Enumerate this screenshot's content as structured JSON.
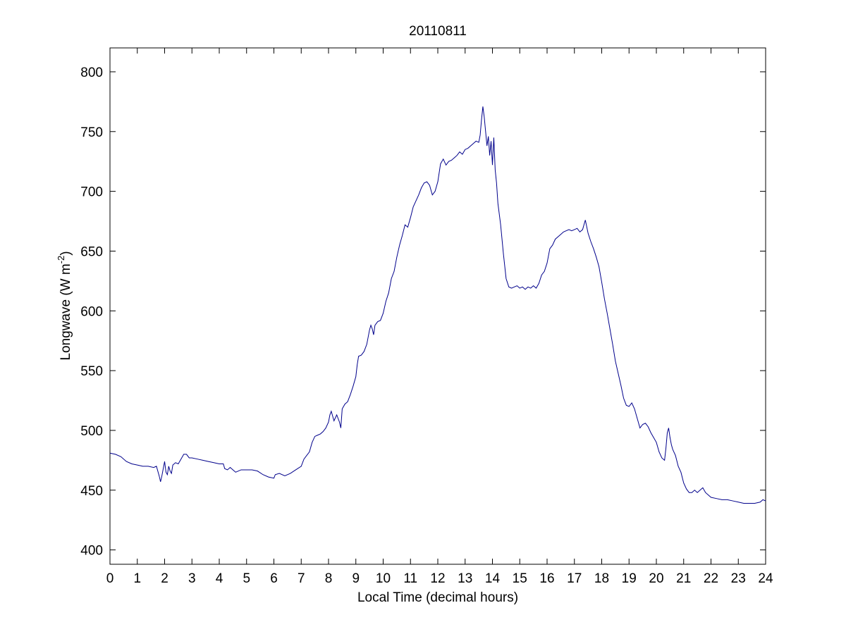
{
  "chart_data": {
    "type": "line",
    "title": "20110811",
    "xlabel": "Local Time (decimal hours)",
    "ylabel_main": "Longwave (W m",
    "ylabel_sup": "-2",
    "ylabel_close": ")",
    "xlim": [
      0,
      24
    ],
    "ylim": [
      388,
      820
    ],
    "xticks": [
      0,
      1,
      2,
      3,
      4,
      5,
      6,
      7,
      8,
      9,
      10,
      11,
      12,
      13,
      14,
      15,
      16,
      17,
      18,
      19,
      20,
      21,
      22,
      23,
      24
    ],
    "yticks": [
      400,
      450,
      500,
      550,
      600,
      650,
      700,
      750,
      800
    ],
    "grid": false,
    "line_color": "#00008b",
    "series": [
      {
        "points": [
          [
            0.0,
            481
          ],
          [
            0.2,
            480
          ],
          [
            0.4,
            478
          ],
          [
            0.6,
            474
          ],
          [
            0.8,
            472
          ],
          [
            1.0,
            471
          ],
          [
            1.2,
            470
          ],
          [
            1.4,
            470
          ],
          [
            1.6,
            469
          ],
          [
            1.7,
            470
          ],
          [
            1.8,
            462
          ],
          [
            1.85,
            457
          ],
          [
            1.9,
            462
          ],
          [
            1.95,
            468
          ],
          [
            2.0,
            474
          ],
          [
            2.05,
            465
          ],
          [
            2.1,
            463
          ],
          [
            2.15,
            470
          ],
          [
            2.2,
            466
          ],
          [
            2.25,
            464
          ],
          [
            2.3,
            471
          ],
          [
            2.4,
            473
          ],
          [
            2.5,
            472
          ],
          [
            2.6,
            476
          ],
          [
            2.7,
            480
          ],
          [
            2.8,
            480
          ],
          [
            2.9,
            477
          ],
          [
            3.0,
            477
          ],
          [
            3.2,
            476
          ],
          [
            3.4,
            475
          ],
          [
            3.6,
            474
          ],
          [
            3.8,
            473
          ],
          [
            4.0,
            472
          ],
          [
            4.15,
            472
          ],
          [
            4.2,
            468
          ],
          [
            4.3,
            467
          ],
          [
            4.4,
            469
          ],
          [
            4.5,
            467
          ],
          [
            4.6,
            465
          ],
          [
            4.8,
            467
          ],
          [
            5.0,
            467
          ],
          [
            5.2,
            467
          ],
          [
            5.4,
            466
          ],
          [
            5.6,
            463
          ],
          [
            5.8,
            461
          ],
          [
            6.0,
            460
          ],
          [
            6.05,
            463
          ],
          [
            6.2,
            464
          ],
          [
            6.4,
            462
          ],
          [
            6.6,
            464
          ],
          [
            6.8,
            467
          ],
          [
            7.0,
            470
          ],
          [
            7.1,
            476
          ],
          [
            7.2,
            479
          ],
          [
            7.3,
            482
          ],
          [
            7.4,
            490
          ],
          [
            7.5,
            495
          ],
          [
            7.6,
            496
          ],
          [
            7.7,
            497
          ],
          [
            7.8,
            499
          ],
          [
            7.9,
            502
          ],
          [
            8.0,
            507
          ],
          [
            8.05,
            513
          ],
          [
            8.1,
            516
          ],
          [
            8.15,
            512
          ],
          [
            8.2,
            508
          ],
          [
            8.3,
            513
          ],
          [
            8.4,
            507
          ],
          [
            8.45,
            502
          ],
          [
            8.5,
            518
          ],
          [
            8.6,
            522
          ],
          [
            8.7,
            524
          ],
          [
            8.8,
            530
          ],
          [
            8.9,
            537
          ],
          [
            9.0,
            545
          ],
          [
            9.05,
            555
          ],
          [
            9.1,
            562
          ],
          [
            9.2,
            563
          ],
          [
            9.3,
            566
          ],
          [
            9.4,
            572
          ],
          [
            9.5,
            584
          ],
          [
            9.55,
            588
          ],
          [
            9.6,
            585
          ],
          [
            9.65,
            580
          ],
          [
            9.7,
            588
          ],
          [
            9.8,
            591
          ],
          [
            9.9,
            592
          ],
          [
            10.0,
            598
          ],
          [
            10.1,
            608
          ],
          [
            10.2,
            615
          ],
          [
            10.3,
            627
          ],
          [
            10.4,
            633
          ],
          [
            10.5,
            645
          ],
          [
            10.6,
            655
          ],
          [
            10.7,
            663
          ],
          [
            10.8,
            672
          ],
          [
            10.9,
            670
          ],
          [
            11.0,
            678
          ],
          [
            11.1,
            687
          ],
          [
            11.2,
            692
          ],
          [
            11.3,
            697
          ],
          [
            11.4,
            703
          ],
          [
            11.5,
            707
          ],
          [
            11.6,
            708
          ],
          [
            11.7,
            705
          ],
          [
            11.8,
            697
          ],
          [
            11.9,
            700
          ],
          [
            12.0,
            708
          ],
          [
            12.1,
            723
          ],
          [
            12.2,
            727
          ],
          [
            12.3,
            722
          ],
          [
            12.4,
            725
          ],
          [
            12.5,
            726
          ],
          [
            12.6,
            728
          ],
          [
            12.7,
            730
          ],
          [
            12.8,
            733
          ],
          [
            12.9,
            731
          ],
          [
            13.0,
            735
          ],
          [
            13.1,
            736
          ],
          [
            13.2,
            738
          ],
          [
            13.3,
            740
          ],
          [
            13.4,
            742
          ],
          [
            13.5,
            741
          ],
          [
            13.55,
            747
          ],
          [
            13.6,
            760
          ],
          [
            13.65,
            771
          ],
          [
            13.7,
            762
          ],
          [
            13.75,
            750
          ],
          [
            13.8,
            738
          ],
          [
            13.85,
            746
          ],
          [
            13.9,
            730
          ],
          [
            13.95,
            742
          ],
          [
            14.0,
            722
          ],
          [
            14.05,
            745
          ],
          [
            14.1,
            718
          ],
          [
            14.15,
            707
          ],
          [
            14.2,
            690
          ],
          [
            14.3,
            672
          ],
          [
            14.4,
            648
          ],
          [
            14.5,
            627
          ],
          [
            14.6,
            620
          ],
          [
            14.7,
            619
          ],
          [
            14.8,
            620
          ],
          [
            14.9,
            621
          ],
          [
            15.0,
            619
          ],
          [
            15.1,
            620
          ],
          [
            15.2,
            618
          ],
          [
            15.3,
            620
          ],
          [
            15.4,
            619
          ],
          [
            15.5,
            621
          ],
          [
            15.6,
            619
          ],
          [
            15.7,
            623
          ],
          [
            15.8,
            630
          ],
          [
            15.9,
            633
          ],
          [
            16.0,
            640
          ],
          [
            16.1,
            652
          ],
          [
            16.2,
            655
          ],
          [
            16.3,
            660
          ],
          [
            16.4,
            662
          ],
          [
            16.5,
            664
          ],
          [
            16.6,
            666
          ],
          [
            16.7,
            667
          ],
          [
            16.8,
            668
          ],
          [
            16.9,
            667
          ],
          [
            17.0,
            668
          ],
          [
            17.1,
            669
          ],
          [
            17.2,
            666
          ],
          [
            17.3,
            668
          ],
          [
            17.35,
            672
          ],
          [
            17.4,
            676
          ],
          [
            17.5,
            665
          ],
          [
            17.6,
            658
          ],
          [
            17.7,
            652
          ],
          [
            17.8,
            645
          ],
          [
            17.9,
            637
          ],
          [
            18.0,
            624
          ],
          [
            18.1,
            610
          ],
          [
            18.2,
            598
          ],
          [
            18.3,
            585
          ],
          [
            18.4,
            572
          ],
          [
            18.5,
            558
          ],
          [
            18.6,
            548
          ],
          [
            18.7,
            538
          ],
          [
            18.8,
            527
          ],
          [
            18.9,
            521
          ],
          [
            19.0,
            520
          ],
          [
            19.1,
            523
          ],
          [
            19.2,
            518
          ],
          [
            19.3,
            510
          ],
          [
            19.4,
            502
          ],
          [
            19.5,
            505
          ],
          [
            19.6,
            506
          ],
          [
            19.7,
            503
          ],
          [
            19.8,
            498
          ],
          [
            19.9,
            494
          ],
          [
            20.0,
            490
          ],
          [
            20.1,
            482
          ],
          [
            20.2,
            477
          ],
          [
            20.3,
            475
          ],
          [
            20.35,
            485
          ],
          [
            20.4,
            498
          ],
          [
            20.45,
            502
          ],
          [
            20.5,
            494
          ],
          [
            20.55,
            488
          ],
          [
            20.6,
            484
          ],
          [
            20.7,
            479
          ],
          [
            20.8,
            470
          ],
          [
            20.9,
            465
          ],
          [
            21.0,
            456
          ],
          [
            21.1,
            451
          ],
          [
            21.2,
            448
          ],
          [
            21.3,
            448
          ],
          [
            21.4,
            450
          ],
          [
            21.5,
            448
          ],
          [
            21.6,
            450
          ],
          [
            21.7,
            452
          ],
          [
            21.8,
            448
          ],
          [
            21.9,
            446
          ],
          [
            22.0,
            444
          ],
          [
            22.2,
            443
          ],
          [
            22.4,
            442
          ],
          [
            22.6,
            442
          ],
          [
            22.8,
            441
          ],
          [
            23.0,
            440
          ],
          [
            23.2,
            439
          ],
          [
            23.4,
            439
          ],
          [
            23.6,
            439
          ],
          [
            23.8,
            440
          ],
          [
            23.9,
            442
          ],
          [
            24.0,
            441
          ]
        ]
      }
    ]
  }
}
